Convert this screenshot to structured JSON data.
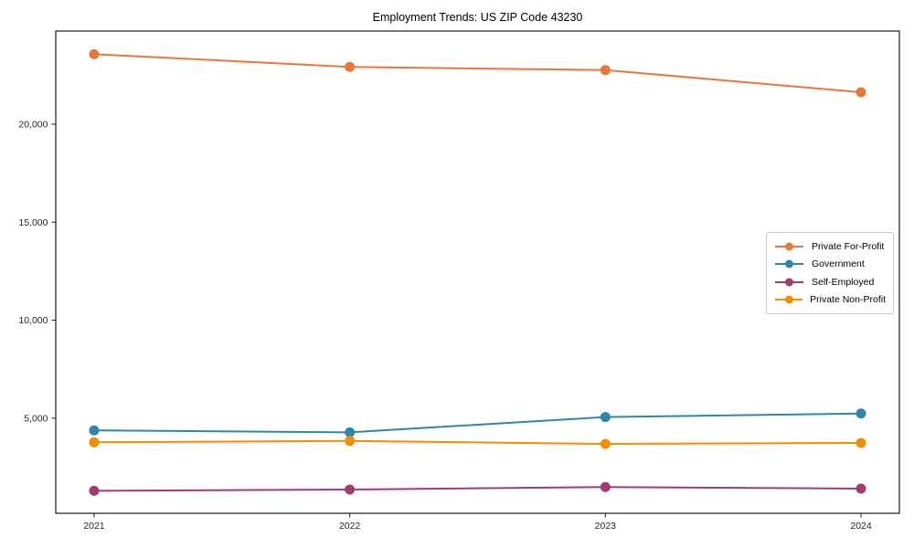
{
  "figure": {
    "background": "#ffffff",
    "axis_color": "#1a1a1a",
    "text_color": "#262626",
    "legend_border_color": "#cbcbcb"
  },
  "chart_data": {
    "type": "line",
    "title": "Employment Trends: US ZIP Code 43230",
    "xlabel": "",
    "ylabel": "",
    "x_categories": [
      "2021",
      "2022",
      "2023",
      "2024"
    ],
    "series": [
      {
        "name": "Private For-Profit",
        "color": "#E6783C",
        "values": [
          23570,
          22920,
          22760,
          21630
        ]
      },
      {
        "name": "Government",
        "color": "#2E86AB",
        "values": [
          4380,
          4280,
          5060,
          5240
        ]
      },
      {
        "name": "Self-Employed",
        "color": "#A23B72",
        "values": [
          1300,
          1360,
          1490,
          1410
        ]
      },
      {
        "name": "Private Non-Profit",
        "color": "#F18F01",
        "values": [
          3770,
          3840,
          3690,
          3740
        ]
      }
    ],
    "y_ticks": [
      {
        "value": 5000,
        "label": "5,000"
      },
      {
        "value": 10000,
        "label": "10,000"
      },
      {
        "value": 15000,
        "label": "15,000"
      },
      {
        "value": 20000,
        "label": "20,000"
      }
    ],
    "ylim": [
      150,
      24750
    ],
    "grid": false,
    "marker": "circle",
    "line_width": 2,
    "marker_radius": 5.5,
    "legend_position": "center-right"
  }
}
